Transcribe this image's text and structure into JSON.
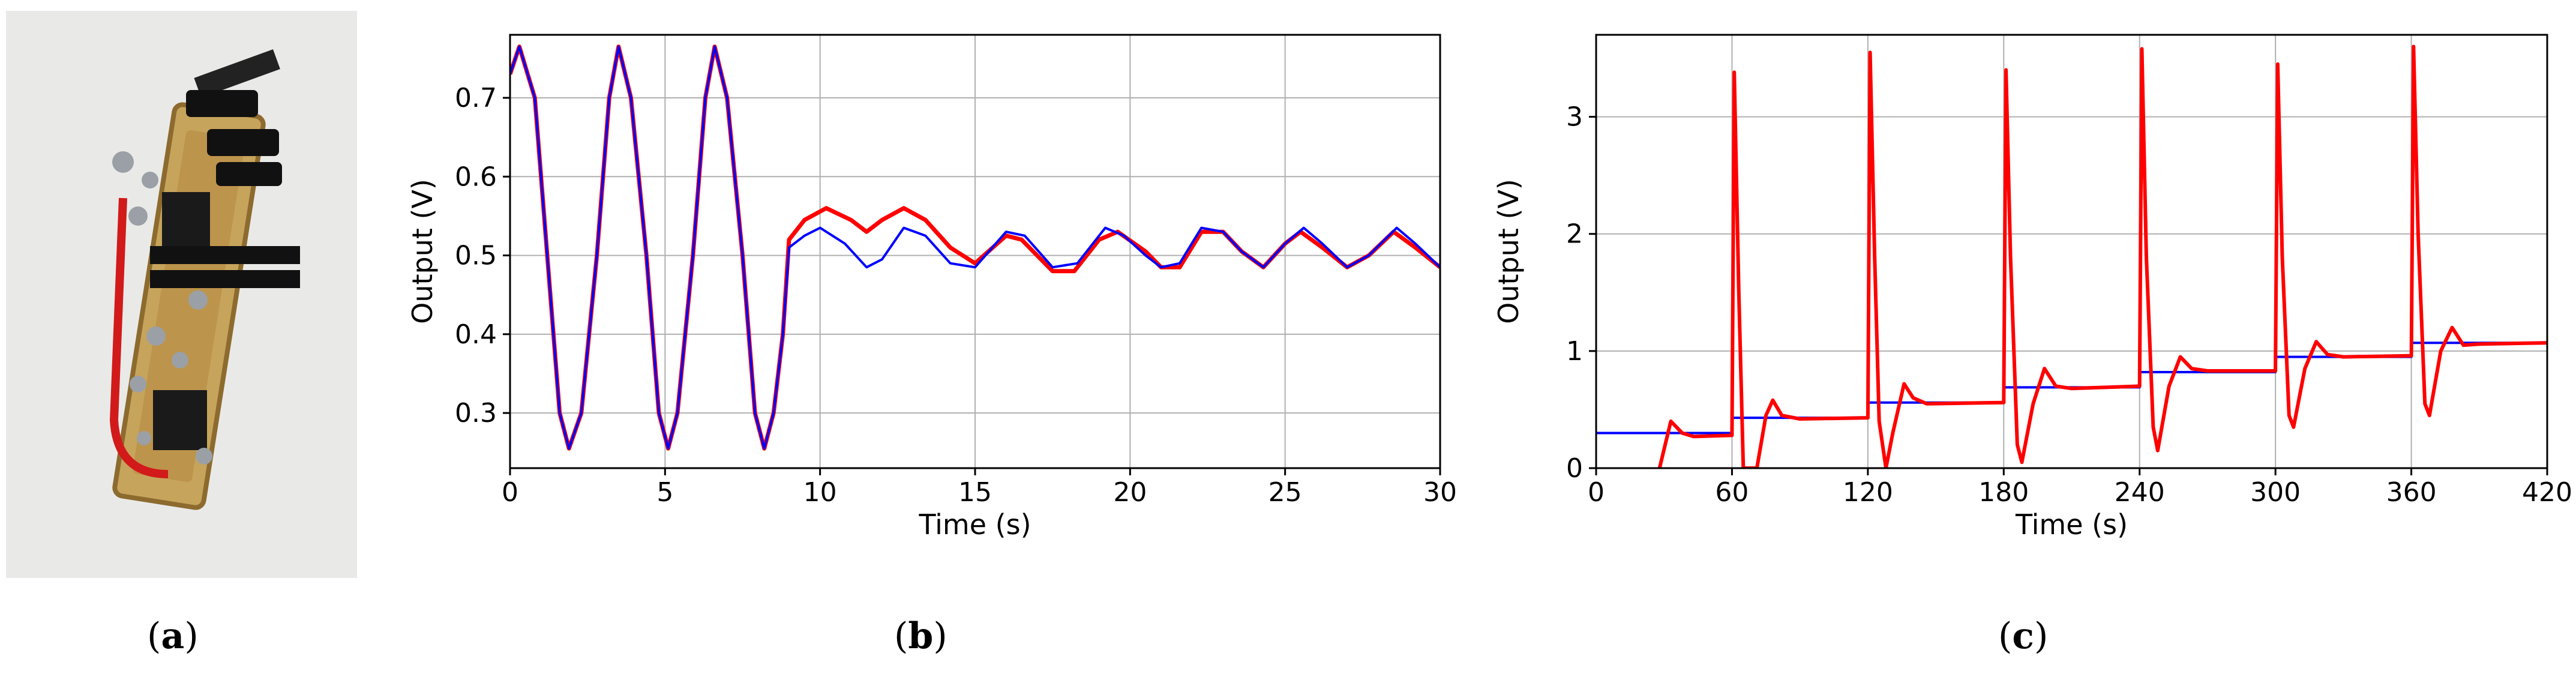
{
  "panels": {
    "a": {
      "label_open": "(",
      "label_letter": "a",
      "label_close": ")"
    },
    "b": {
      "label_open": "(",
      "label_letter": "b",
      "label_close": ")"
    },
    "c": {
      "label_open": "(",
      "label_letter": "c",
      "label_close": ")"
    }
  },
  "colors": {
    "red": "#ff0000",
    "blue": "#0000ff",
    "grid": "#b0b0b0"
  },
  "chart_data": [
    {
      "id": "b",
      "type": "line",
      "xlabel": "Time (s)",
      "ylabel": "Output (V)",
      "xlim": [
        0,
        30
      ],
      "ylim": [
        0.23,
        0.78
      ],
      "xticks": [
        0,
        5,
        10,
        15,
        20,
        25,
        30
      ],
      "yticks": [
        0.3,
        0.4,
        0.5,
        0.6,
        0.7
      ],
      "grid": true,
      "series": [
        {
          "color": "#ff0000",
          "points": [
            [
              0,
              0.73
            ],
            [
              0.3,
              0.765
            ],
            [
              0.8,
              0.7
            ],
            [
              1.2,
              0.5
            ],
            [
              1.6,
              0.3
            ],
            [
              1.9,
              0.255
            ],
            [
              2.3,
              0.3
            ],
            [
              2.8,
              0.5
            ],
            [
              3.2,
              0.7
            ],
            [
              3.5,
              0.765
            ],
            [
              3.9,
              0.7
            ],
            [
              4.4,
              0.5
            ],
            [
              4.8,
              0.3
            ],
            [
              5.1,
              0.255
            ],
            [
              5.4,
              0.3
            ],
            [
              5.9,
              0.5
            ],
            [
              6.3,
              0.7
            ],
            [
              6.6,
              0.765
            ],
            [
              7.0,
              0.7
            ],
            [
              7.5,
              0.5
            ],
            [
              7.9,
              0.3
            ],
            [
              8.2,
              0.255
            ],
            [
              8.5,
              0.3
            ],
            [
              8.8,
              0.4
            ],
            [
              9.0,
              0.52
            ],
            [
              9.5,
              0.545
            ],
            [
              10.2,
              0.56
            ],
            [
              11.0,
              0.545
            ],
            [
              11.5,
              0.53
            ],
            [
              12.0,
              0.545
            ],
            [
              12.7,
              0.56
            ],
            [
              13.4,
              0.545
            ],
            [
              14.2,
              0.51
            ],
            [
              15.0,
              0.49
            ],
            [
              16.0,
              0.525
            ],
            [
              16.5,
              0.52
            ],
            [
              17.5,
              0.48
            ],
            [
              18.2,
              0.48
            ],
            [
              19.0,
              0.52
            ],
            [
              19.6,
              0.53
            ],
            [
              20.5,
              0.505
            ],
            [
              21.0,
              0.485
            ],
            [
              21.6,
              0.485
            ],
            [
              22.3,
              0.53
            ],
            [
              23.0,
              0.53
            ],
            [
              23.6,
              0.505
            ],
            [
              24.3,
              0.485
            ],
            [
              25.0,
              0.515
            ],
            [
              25.5,
              0.53
            ],
            [
              26.2,
              0.51
            ],
            [
              27.0,
              0.485
            ],
            [
              27.7,
              0.5
            ],
            [
              28.5,
              0.53
            ],
            [
              29.2,
              0.51
            ],
            [
              30,
              0.485
            ]
          ]
        },
        {
          "color": "#0000ff",
          "points": [
            [
              0,
              0.73
            ],
            [
              0.3,
              0.765
            ],
            [
              0.8,
              0.7
            ],
            [
              1.2,
              0.5
            ],
            [
              1.6,
              0.3
            ],
            [
              1.9,
              0.255
            ],
            [
              2.3,
              0.3
            ],
            [
              2.8,
              0.5
            ],
            [
              3.2,
              0.7
            ],
            [
              3.5,
              0.765
            ],
            [
              3.9,
              0.7
            ],
            [
              4.4,
              0.5
            ],
            [
              4.8,
              0.3
            ],
            [
              5.1,
              0.255
            ],
            [
              5.4,
              0.3
            ],
            [
              5.9,
              0.5
            ],
            [
              6.3,
              0.7
            ],
            [
              6.6,
              0.765
            ],
            [
              7.0,
              0.7
            ],
            [
              7.5,
              0.5
            ],
            [
              7.9,
              0.3
            ],
            [
              8.2,
              0.255
            ],
            [
              8.5,
              0.3
            ],
            [
              8.8,
              0.4
            ],
            [
              9.0,
              0.51
            ],
            [
              9.5,
              0.525
            ],
            [
              10.0,
              0.535
            ],
            [
              10.8,
              0.515
            ],
            [
              11.5,
              0.485
            ],
            [
              12.0,
              0.495
            ],
            [
              12.7,
              0.535
            ],
            [
              13.4,
              0.525
            ],
            [
              14.2,
              0.49
            ],
            [
              15.0,
              0.485
            ],
            [
              16.0,
              0.53
            ],
            [
              16.6,
              0.525
            ],
            [
              17.5,
              0.485
            ],
            [
              18.3,
              0.49
            ],
            [
              19.2,
              0.535
            ],
            [
              19.8,
              0.525
            ],
            [
              20.5,
              0.5
            ],
            [
              21.0,
              0.485
            ],
            [
              21.6,
              0.49
            ],
            [
              22.3,
              0.535
            ],
            [
              23.0,
              0.53
            ],
            [
              23.6,
              0.505
            ],
            [
              24.3,
              0.485
            ],
            [
              25.0,
              0.515
            ],
            [
              25.6,
              0.535
            ],
            [
              26.2,
              0.515
            ],
            [
              27.0,
              0.485
            ],
            [
              27.7,
              0.5
            ],
            [
              28.6,
              0.535
            ],
            [
              29.2,
              0.515
            ],
            [
              30,
              0.485
            ]
          ]
        }
      ]
    },
    {
      "id": "c",
      "type": "line",
      "xlabel": "Time (s)",
      "ylabel": "Output (V)",
      "xlim": [
        0,
        420
      ],
      "ylim": [
        0,
        3.7
      ],
      "xticks": [
        0,
        60,
        120,
        180,
        240,
        300,
        360,
        420
      ],
      "yticks": [
        0,
        1,
        2,
        3
      ],
      "grid": true,
      "series": [
        {
          "color": "#0000ff",
          "points": [
            [
              0,
              0.3
            ],
            [
              60,
              0.3
            ],
            [
              60,
              0.43
            ],
            [
              120,
              0.43
            ],
            [
              120,
              0.56
            ],
            [
              180,
              0.56
            ],
            [
              180,
              0.69
            ],
            [
              240,
              0.69
            ],
            [
              240,
              0.82
            ],
            [
              300,
              0.82
            ],
            [
              300,
              0.95
            ],
            [
              360,
              0.95
            ],
            [
              360,
              1.07
            ],
            [
              420,
              1.07
            ]
          ]
        },
        {
          "color": "#ff0000",
          "points": [
            [
              28,
              0
            ],
            [
              33,
              0.4
            ],
            [
              38,
              0.3
            ],
            [
              43,
              0.27
            ],
            [
              60,
              0.28
            ],
            [
              61,
              3.38
            ],
            [
              63,
              1.5
            ],
            [
              65,
              0
            ],
            [
              71,
              0
            ],
            [
              75,
              0.45
            ],
            [
              78,
              0.58
            ],
            [
              82,
              0.45
            ],
            [
              90,
              0.42
            ],
            [
              120,
              0.43
            ],
            [
              121,
              3.55
            ],
            [
              123,
              1.8
            ],
            [
              125,
              0.4
            ],
            [
              128,
              0
            ],
            [
              131,
              0.3
            ],
            [
              136,
              0.72
            ],
            [
              140,
              0.6
            ],
            [
              146,
              0.55
            ],
            [
              180,
              0.56
            ],
            [
              181,
              3.4
            ],
            [
              183,
              1.8
            ],
            [
              186,
              0.2
            ],
            [
              188,
              0.05
            ],
            [
              193,
              0.55
            ],
            [
              198,
              0.85
            ],
            [
              203,
              0.7
            ],
            [
              210,
              0.68
            ],
            [
              240,
              0.7
            ],
            [
              241,
              3.58
            ],
            [
              243,
              1.8
            ],
            [
              246,
              0.35
            ],
            [
              248,
              0.15
            ],
            [
              253,
              0.7
            ],
            [
              258,
              0.95
            ],
            [
              263,
              0.85
            ],
            [
              270,
              0.83
            ],
            [
              300,
              0.83
            ],
            [
              301,
              3.45
            ],
            [
              303,
              1.8
            ],
            [
              306,
              0.45
            ],
            [
              308,
              0.35
            ],
            [
              313,
              0.85
            ],
            [
              318,
              1.08
            ],
            [
              323,
              0.97
            ],
            [
              330,
              0.95
            ],
            [
              360,
              0.96
            ],
            [
              361,
              3.6
            ],
            [
              363,
              2.0
            ],
            [
              366,
              0.55
            ],
            [
              368,
              0.45
            ],
            [
              373,
              1.0
            ],
            [
              378,
              1.2
            ],
            [
              383,
              1.05
            ],
            [
              390,
              1.06
            ],
            [
              420,
              1.07
            ]
          ]
        }
      ]
    }
  ]
}
